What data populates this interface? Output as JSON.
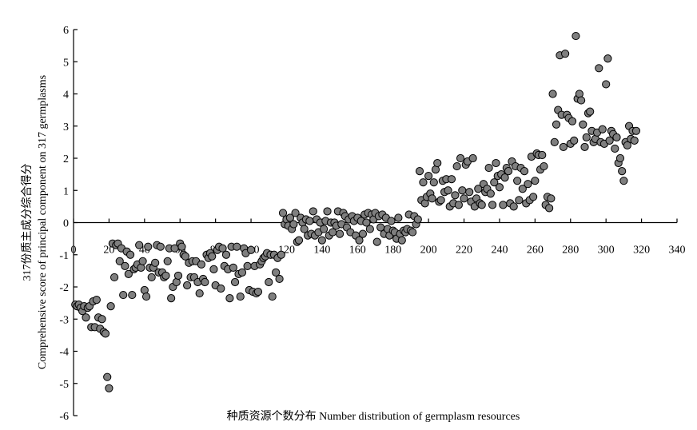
{
  "chart_data": {
    "type": "scatter",
    "title": "",
    "xlabel": "种质资源个数分布 Number distribution of germplasm resources",
    "ylabel_line1": "317份质主成分综合得分",
    "ylabel_line2": "Comprehensive score of principal component on 317 germplasms",
    "xlim": [
      0,
      340
    ],
    "ylim": [
      -6,
      6
    ],
    "x_ticks": [
      0,
      20,
      40,
      60,
      80,
      100,
      120,
      140,
      160,
      180,
      200,
      220,
      240,
      260,
      280,
      300,
      320,
      340
    ],
    "y_ticks": [
      -6,
      -5,
      -4,
      -3,
      -2,
      -1,
      0,
      1,
      2,
      3,
      4,
      5,
      6
    ],
    "grid": false,
    "legend": "none",
    "colors": {
      "marker_fill": "#7f7f7f",
      "marker_edge": "#000000",
      "axis": "#000000"
    },
    "points": [
      [
        1,
        -2.55
      ],
      [
        2,
        -2.6
      ],
      [
        3,
        -2.55
      ],
      [
        4,
        -2.65
      ],
      [
        5,
        -2.75
      ],
      [
        6,
        -2.6
      ],
      [
        7,
        -2.95
      ],
      [
        8,
        -2.65
      ],
      [
        9,
        -2.6
      ],
      [
        10,
        -3.25
      ],
      [
        11,
        -2.45
      ],
      [
        12,
        -3.25
      ],
      [
        13,
        -2.4
      ],
      [
        14,
        -2.95
      ],
      [
        15,
        -3.3
      ],
      [
        16,
        -3.0
      ],
      [
        17,
        -3.4
      ],
      [
        18,
        -3.45
      ],
      [
        19,
        -4.8
      ],
      [
        20,
        -5.15
      ],
      [
        21,
        -2.6
      ],
      [
        22,
        -0.65
      ],
      [
        23,
        -1.7
      ],
      [
        24,
        -0.7
      ],
      [
        25,
        -0.65
      ],
      [
        26,
        -1.2
      ],
      [
        27,
        -0.8
      ],
      [
        28,
        -2.25
      ],
      [
        29,
        -1.35
      ],
      [
        30,
        -0.9
      ],
      [
        31,
        -1.6
      ],
      [
        32,
        -1.0
      ],
      [
        33,
        -2.25
      ],
      [
        34,
        -1.45
      ],
      [
        35,
        -1.4
      ],
      [
        36,
        -1.3
      ],
      [
        37,
        -0.7
      ],
      [
        38,
        -1.4
      ],
      [
        39,
        -1.2
      ],
      [
        40,
        -2.1
      ],
      [
        41,
        -2.3
      ],
      [
        42,
        -0.75
      ],
      [
        43,
        -1.4
      ],
      [
        44,
        -1.7
      ],
      [
        45,
        -1.4
      ],
      [
        46,
        -1.25
      ],
      [
        47,
        -0.7
      ],
      [
        48,
        -1.55
      ],
      [
        49,
        -0.75
      ],
      [
        50,
        -1.55
      ],
      [
        51,
        -1.7
      ],
      [
        52,
        -1.65
      ],
      [
        53,
        -1.2
      ],
      [
        54,
        -0.8
      ],
      [
        55,
        -2.35
      ],
      [
        56,
        -2.0
      ],
      [
        57,
        -0.8
      ],
      [
        58,
        -1.85
      ],
      [
        59,
        -1.65
      ],
      [
        60,
        -0.65
      ],
      [
        61,
        -0.75
      ],
      [
        62,
        -1.0
      ],
      [
        63,
        -1.05
      ],
      [
        64,
        -1.95
      ],
      [
        65,
        -1.25
      ],
      [
        66,
        -1.7
      ],
      [
        67,
        -1.2
      ],
      [
        68,
        -1.7
      ],
      [
        69,
        -1.2
      ],
      [
        70,
        -1.85
      ],
      [
        71,
        -2.2
      ],
      [
        72,
        -1.3
      ],
      [
        73,
        -1.75
      ],
      [
        74,
        -1.85
      ],
      [
        75,
        -1.0
      ],
      [
        76,
        -1.1
      ],
      [
        77,
        -0.95
      ],
      [
        78,
        -1.05
      ],
      [
        79,
        -1.45
      ],
      [
        80,
        -1.95
      ],
      [
        81,
        -0.85
      ],
      [
        82,
        -0.75
      ],
      [
        83,
        -2.05
      ],
      [
        84,
        -0.8
      ],
      [
        85,
        -1.35
      ],
      [
        86,
        -1.0
      ],
      [
        87,
        -1.45
      ],
      [
        88,
        -2.35
      ],
      [
        89,
        -0.75
      ],
      [
        90,
        -1.4
      ],
      [
        91,
        -1.85
      ],
      [
        92,
        -0.75
      ],
      [
        93,
        -1.6
      ],
      [
        94,
        -2.3
      ],
      [
        95,
        -1.55
      ],
      [
        96,
        -0.8
      ],
      [
        97,
        -0.95
      ],
      [
        98,
        -1.35
      ],
      [
        99,
        -2.1
      ],
      [
        100,
        -0.85
      ],
      [
        101,
        -2.15
      ],
      [
        102,
        -1.35
      ],
      [
        103,
        -2.2
      ],
      [
        104,
        -2.15
      ],
      [
        105,
        -1.3
      ],
      [
        106,
        -1.2
      ],
      [
        107,
        -1.1
      ],
      [
        108,
        -1.05
      ],
      [
        109,
        -0.95
      ],
      [
        110,
        -1.85
      ],
      [
        111,
        -1.0
      ],
      [
        112,
        -2.3
      ],
      [
        113,
        -1.0
      ],
      [
        114,
        -1.55
      ],
      [
        115,
        -1.1
      ],
      [
        116,
        -1.75
      ],
      [
        117,
        -1.0
      ],
      [
        118,
        0.3
      ],
      [
        119,
        -0.05
      ],
      [
        120,
        0.1
      ],
      [
        121,
        -0.1
      ],
      [
        122,
        0.15
      ],
      [
        123,
        -0.2
      ],
      [
        124,
        -0.05
      ],
      [
        125,
        0.3
      ],
      [
        126,
        -0.6
      ],
      [
        127,
        -0.55
      ],
      [
        128,
        0.15
      ],
      [
        129,
        0.0
      ],
      [
        130,
        -0.2
      ],
      [
        131,
        0.1
      ],
      [
        132,
        -0.4
      ],
      [
        133,
        0.05
      ],
      [
        134,
        -0.35
      ],
      [
        135,
        0.35
      ],
      [
        136,
        -0.4
      ],
      [
        137,
        0.1
      ],
      [
        138,
        -0.3
      ],
      [
        139,
        0.0
      ],
      [
        140,
        -0.55
      ],
      [
        141,
        -0.2
      ],
      [
        142,
        0.05
      ],
      [
        143,
        0.35
      ],
      [
        144,
        -0.4
      ],
      [
        145,
        0.0
      ],
      [
        146,
        -0.3
      ],
      [
        147,
        0.0
      ],
      [
        148,
        -0.1
      ],
      [
        149,
        0.35
      ],
      [
        150,
        -0.35
      ],
      [
        151,
        -0.05
      ],
      [
        152,
        0.3
      ],
      [
        153,
        0.2
      ],
      [
        154,
        -0.15
      ],
      [
        155,
        0.1
      ],
      [
        156,
        -0.3
      ],
      [
        157,
        0.2
      ],
      [
        158,
        0.05
      ],
      [
        159,
        -0.4
      ],
      [
        160,
        0.15
      ],
      [
        161,
        -0.55
      ],
      [
        162,
        0.05
      ],
      [
        163,
        -0.35
      ],
      [
        164,
        0.25
      ],
      [
        165,
        0.0
      ],
      [
        166,
        0.3
      ],
      [
        167,
        -0.2
      ],
      [
        168,
        0.25
      ],
      [
        169,
        0.1
      ],
      [
        170,
        0.3
      ],
      [
        171,
        -0.6
      ],
      [
        172,
        0.2
      ],
      [
        173,
        -0.15
      ],
      [
        174,
        0.25
      ],
      [
        175,
        -0.35
      ],
      [
        176,
        0.15
      ],
      [
        177,
        -0.2
      ],
      [
        178,
        -0.4
      ],
      [
        179,
        0.05
      ],
      [
        180,
        -0.25
      ],
      [
        181,
        -0.3
      ],
      [
        182,
        -0.5
      ],
      [
        183,
        0.15
      ],
      [
        184,
        -0.35
      ],
      [
        185,
        -0.55
      ],
      [
        186,
        -0.25
      ],
      [
        187,
        -0.3
      ],
      [
        188,
        -0.2
      ],
      [
        189,
        0.25
      ],
      [
        190,
        -0.25
      ],
      [
        191,
        -0.3
      ],
      [
        192,
        0.2
      ],
      [
        193,
        -0.05
      ],
      [
        194,
        0.1
      ],
      [
        195,
        1.6
      ],
      [
        196,
        0.7
      ],
      [
        197,
        1.25
      ],
      [
        198,
        0.6
      ],
      [
        199,
        0.8
      ],
      [
        200,
        1.45
      ],
      [
        201,
        0.9
      ],
      [
        202,
        0.75
      ],
      [
        203,
        1.25
      ],
      [
        204,
        1.65
      ],
      [
        205,
        1.85
      ],
      [
        206,
        0.65
      ],
      [
        207,
        0.7
      ],
      [
        208,
        1.3
      ],
      [
        209,
        0.95
      ],
      [
        210,
        1.35
      ],
      [
        211,
        1.0
      ],
      [
        212,
        0.5
      ],
      [
        213,
        1.35
      ],
      [
        214,
        0.6
      ],
      [
        215,
        0.85
      ],
      [
        216,
        1.75
      ],
      [
        217,
        0.55
      ],
      [
        218,
        2.0
      ],
      [
        219,
        1.0
      ],
      [
        220,
        0.75
      ],
      [
        221,
        1.8
      ],
      [
        222,
        1.9
      ],
      [
        223,
        0.95
      ],
      [
        224,
        0.65
      ],
      [
        225,
        2.0
      ],
      [
        226,
        0.5
      ],
      [
        227,
        0.75
      ],
      [
        228,
        1.05
      ],
      [
        229,
        0.6
      ],
      [
        230,
        0.55
      ],
      [
        231,
        1.2
      ],
      [
        232,
        0.95
      ],
      [
        233,
        1.05
      ],
      [
        234,
        1.7
      ],
      [
        235,
        0.9
      ],
      [
        236,
        0.55
      ],
      [
        237,
        1.25
      ],
      [
        238,
        1.85
      ],
      [
        239,
        1.45
      ],
      [
        240,
        1.1
      ],
      [
        241,
        1.5
      ],
      [
        242,
        0.55
      ],
      [
        243,
        1.4
      ],
      [
        244,
        1.7
      ],
      [
        245,
        1.6
      ],
      [
        246,
        0.6
      ],
      [
        247,
        1.9
      ],
      [
        248,
        0.5
      ],
      [
        249,
        1.75
      ],
      [
        250,
        1.3
      ],
      [
        251,
        0.7
      ],
      [
        252,
        1.7
      ],
      [
        253,
        1.05
      ],
      [
        254,
        1.6
      ],
      [
        255,
        0.6
      ],
      [
        256,
        1.2
      ],
      [
        257,
        0.7
      ],
      [
        258,
        2.05
      ],
      [
        259,
        0.8
      ],
      [
        260,
        1.3
      ],
      [
        261,
        2.15
      ],
      [
        262,
        2.1
      ],
      [
        263,
        1.65
      ],
      [
        264,
        2.1
      ],
      [
        265,
        1.75
      ],
      [
        266,
        0.55
      ],
      [
        267,
        0.8
      ],
      [
        268,
        0.45
      ],
      [
        269,
        0.75
      ],
      [
        270,
        4.0
      ],
      [
        271,
        2.5
      ],
      [
        272,
        3.05
      ],
      [
        273,
        3.5
      ],
      [
        274,
        5.2
      ],
      [
        275,
        3.35
      ],
      [
        276,
        2.35
      ],
      [
        277,
        5.25
      ],
      [
        278,
        3.35
      ],
      [
        279,
        3.25
      ],
      [
        280,
        2.45
      ],
      [
        281,
        3.15
      ],
      [
        282,
        2.55
      ],
      [
        283,
        5.8
      ],
      [
        284,
        3.85
      ],
      [
        285,
        4.0
      ],
      [
        286,
        3.8
      ],
      [
        287,
        3.05
      ],
      [
        288,
        2.35
      ],
      [
        289,
        2.65
      ],
      [
        290,
        3.4
      ],
      [
        291,
        3.45
      ],
      [
        292,
        2.85
      ],
      [
        293,
        2.5
      ],
      [
        294,
        2.6
      ],
      [
        295,
        2.8
      ],
      [
        296,
        4.8
      ],
      [
        297,
        2.5
      ],
      [
        298,
        2.9
      ],
      [
        299,
        2.45
      ],
      [
        300,
        4.3
      ],
      [
        301,
        5.1
      ],
      [
        302,
        2.55
      ],
      [
        303,
        2.85
      ],
      [
        304,
        2.75
      ],
      [
        305,
        2.3
      ],
      [
        306,
        2.65
      ],
      [
        307,
        1.85
      ],
      [
        308,
        2.0
      ],
      [
        309,
        1.6
      ],
      [
        310,
        1.3
      ],
      [
        311,
        2.5
      ],
      [
        312,
        2.4
      ],
      [
        313,
        3.0
      ],
      [
        314,
        2.6
      ],
      [
        315,
        2.85
      ],
      [
        316,
        2.55
      ],
      [
        317,
        2.85
      ]
    ]
  }
}
